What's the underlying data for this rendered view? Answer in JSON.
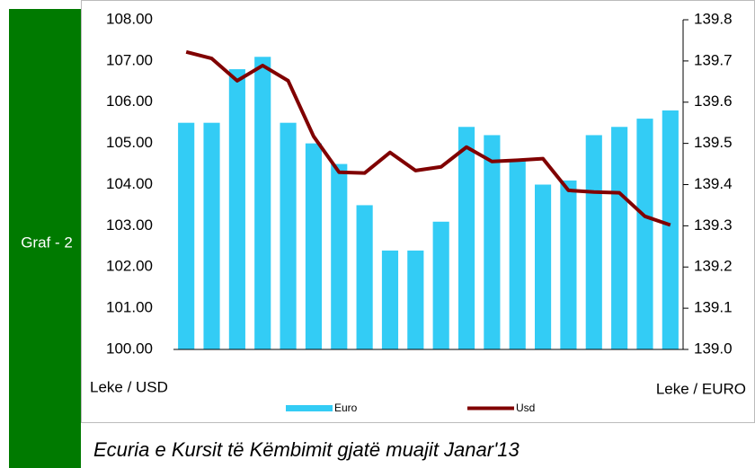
{
  "chart_data": {
    "type": "bar",
    "side_label": "Graf - 2",
    "title": "Ecuria e Kursit të Këmbimit gjatë muajit Janar'13",
    "y_label": "Leke / USD",
    "y2_label": "Leke / EURO",
    "categories": [
      null,
      null,
      null,
      null,
      null,
      null,
      null,
      null,
      null,
      null,
      null,
      null,
      null,
      null,
      null,
      null,
      null,
      null,
      null,
      null
    ],
    "series": [
      {
        "name": "Euro",
        "type": "bar",
        "axis": "y2",
        "color": "#33ccf5",
        "values": [
          139.55,
          139.55,
          139.68,
          139.71,
          139.55,
          139.5,
          139.45,
          139.35,
          139.24,
          139.24,
          139.31,
          139.54,
          139.52,
          139.46,
          139.4,
          139.41,
          139.52,
          139.54,
          139.56,
          139.58
        ]
      },
      {
        "name": "Usd",
        "type": "line",
        "color": "#800000",
        "values": [
          107.22,
          107.06,
          106.52,
          106.89,
          106.52,
          105.17,
          104.3,
          104.28,
          104.78,
          104.34,
          104.43,
          104.91,
          104.56,
          104.59,
          104.63,
          103.86,
          103.82,
          103.8,
          103.23,
          103.02
        ]
      }
    ],
    "ylim": [
      100,
      108
    ],
    "yticks": [
      {
        "value": 100,
        "label": "100.00"
      },
      {
        "value": 101,
        "label": "101.00"
      },
      {
        "value": 102,
        "label": "102.00"
      },
      {
        "value": 103,
        "label": "103.00"
      },
      {
        "value": 104,
        "label": "104.00"
      },
      {
        "value": 105,
        "label": "105.00"
      },
      {
        "value": 106,
        "label": "106.00"
      },
      {
        "value": 107,
        "label": "107.00"
      },
      {
        "value": 108,
        "label": "108.00"
      }
    ],
    "y2lim": [
      139.0,
      139.8
    ],
    "y2ticks": [
      {
        "value": 139.0,
        "label": "139.0"
      },
      139.1,
      139.2,
      139.3,
      139.4,
      139.5,
      139.6,
      139.7,
      139.8
    ]
  }
}
